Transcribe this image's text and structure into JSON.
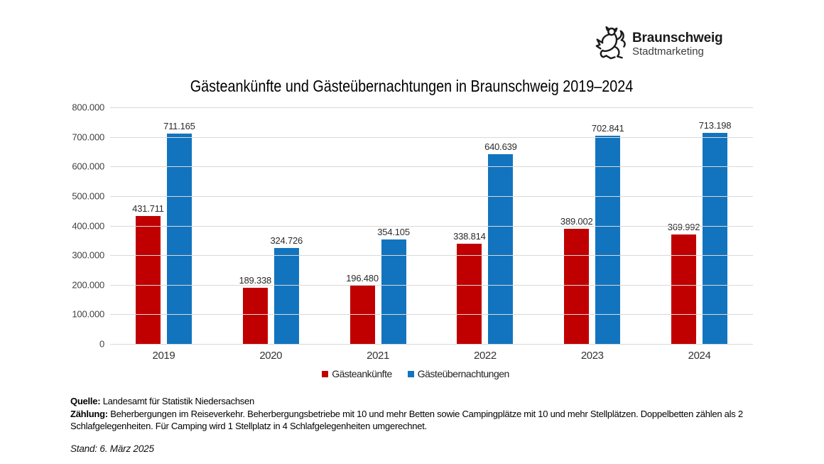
{
  "logo": {
    "icon": "braunschweig-lion",
    "title": "Braunschweig",
    "subtitle": "Stadtmarketing"
  },
  "chart_data": {
    "type": "bar",
    "title": "Gästeankünfte und Gästeübernachtungen in Braunschweig 2019–2024",
    "categories": [
      "2019",
      "2020",
      "2021",
      "2022",
      "2023",
      "2024"
    ],
    "series": [
      {
        "name": "Gästeankünfte",
        "color": "#c00000",
        "values": [
          431711,
          189338,
          196480,
          338814,
          389002,
          369992
        ]
      },
      {
        "name": "Gästeübernachtungen",
        "color": "#1274be",
        "values": [
          711165,
          324726,
          354105,
          640639,
          702841,
          713198
        ]
      }
    ],
    "ylim": [
      0,
      800000
    ],
    "ytick_step": 100000,
    "ytick_labels": [
      "0",
      "100.000",
      "200.000",
      "300.000",
      "400.000",
      "500.000",
      "600.000",
      "700.000",
      "800.000"
    ],
    "grid": true,
    "value_labels": true,
    "legend_position": "bottom",
    "number_format": "thousands-dot"
  },
  "footer": {
    "source_label": "Quelle:",
    "source_text": "Landesamt für Statistik Niedersachsen",
    "method_label": "Zählung:",
    "method_text": "Beherbergungen im Reiseverkehr. Beherbergungsbetriebe mit 10 und mehr Betten sowie Campingplätze mit 10 und mehr Stellplätzen. Doppelbetten zählen als 2 Schlafgelegenheiten. Für Camping wird 1 Stellplatz in 4 Schlafgelegenheiten umgerechnet.",
    "stand_text": "Stand: 6. März 2025"
  }
}
